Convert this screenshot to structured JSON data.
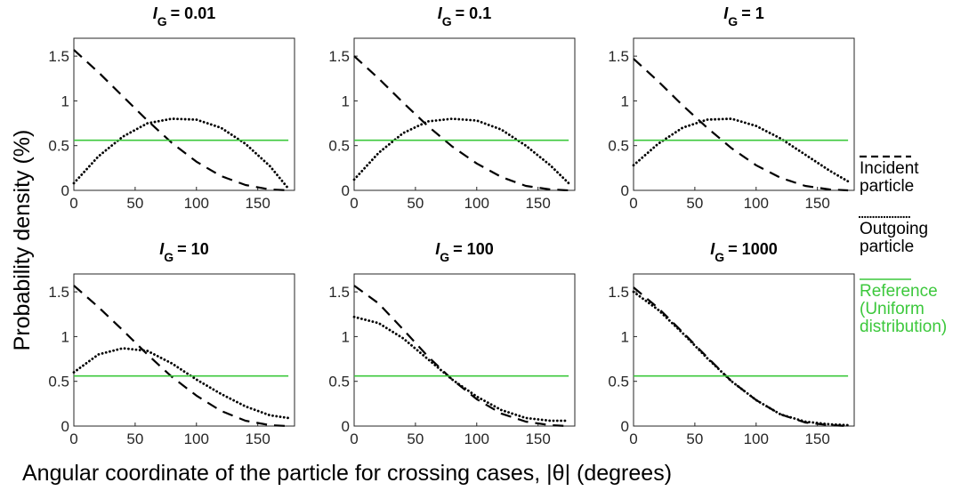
{
  "colors": {
    "incident": "#000000",
    "outgoing": "#000000",
    "reference": "#3cc83c",
    "axis": "#262626"
  },
  "ylabel": "Probability density (%)",
  "xlabel": "Angular coordinate of the particle for crossing cases, |θ| (degrees)",
  "legend": {
    "placement": "right",
    "items": [
      {
        "key": "incident",
        "lines": [
          "Incident",
          "particle"
        ]
      },
      {
        "key": "outgoing",
        "lines": [
          "Outgoing",
          "particle"
        ]
      },
      {
        "key": "reference",
        "lines": [
          "Reference",
          "(Uniform",
          "distribution)"
        ]
      }
    ]
  },
  "chart_data": [
    {
      "type": "line",
      "title_var": "I",
      "title_sub": "G",
      "title_value": "= 0.01",
      "xlim": [
        0,
        180
      ],
      "ylim": [
        0,
        1.7
      ],
      "xticks": [
        "0",
        "50",
        "100",
        "150"
      ],
      "yticks": [
        "0",
        "0.5",
        "1",
        "1.5"
      ],
      "x": [
        0,
        20,
        40,
        60,
        80,
        100,
        120,
        140,
        160,
        175
      ],
      "series": [
        {
          "key": "incident",
          "values": [
            1.57,
            1.32,
            1.05,
            0.78,
            0.53,
            0.32,
            0.16,
            0.06,
            0.01,
            0.0
          ]
        },
        {
          "key": "outgoing",
          "values": [
            0.08,
            0.38,
            0.6,
            0.75,
            0.8,
            0.79,
            0.7,
            0.52,
            0.27,
            0.02
          ]
        },
        {
          "key": "reference",
          "values": [
            0.56,
            0.56,
            0.56,
            0.56,
            0.56,
            0.56,
            0.56,
            0.56,
            0.56,
            0.56
          ]
        }
      ]
    },
    {
      "type": "line",
      "title_var": "I",
      "title_sub": "G",
      "title_value": "= 0.1",
      "xlim": [
        0,
        180
      ],
      "ylim": [
        0,
        1.7
      ],
      "xticks": [
        "0",
        "50",
        "100",
        "150"
      ],
      "yticks": [
        "0",
        "0.5",
        "1",
        "1.5"
      ],
      "x": [
        0,
        20,
        40,
        60,
        80,
        100,
        120,
        140,
        160,
        175
      ],
      "series": [
        {
          "key": "incident",
          "values": [
            1.5,
            1.25,
            0.98,
            0.72,
            0.49,
            0.3,
            0.15,
            0.05,
            0.01,
            0.0
          ]
        },
        {
          "key": "outgoing",
          "values": [
            0.12,
            0.42,
            0.64,
            0.77,
            0.8,
            0.78,
            0.68,
            0.5,
            0.28,
            0.08
          ]
        },
        {
          "key": "reference",
          "values": [
            0.56,
            0.56,
            0.56,
            0.56,
            0.56,
            0.56,
            0.56,
            0.56,
            0.56,
            0.56
          ]
        }
      ]
    },
    {
      "type": "line",
      "title_var": "I",
      "title_sub": "G",
      "title_value": "= 1",
      "xlim": [
        0,
        180
      ],
      "ylim": [
        0,
        1.7
      ],
      "xticks": [
        "0",
        "50",
        "100",
        "150"
      ],
      "yticks": [
        "0",
        "0.5",
        "1",
        "1.5"
      ],
      "x": [
        0,
        20,
        40,
        60,
        80,
        100,
        120,
        140,
        160,
        175
      ],
      "series": [
        {
          "key": "incident",
          "values": [
            1.47,
            1.22,
            0.95,
            0.7,
            0.47,
            0.28,
            0.14,
            0.05,
            0.01,
            0.0
          ]
        },
        {
          "key": "outgoing",
          "values": [
            0.28,
            0.52,
            0.7,
            0.79,
            0.8,
            0.72,
            0.58,
            0.4,
            0.22,
            0.1
          ]
        },
        {
          "key": "reference",
          "values": [
            0.56,
            0.56,
            0.56,
            0.56,
            0.56,
            0.56,
            0.56,
            0.56,
            0.56,
            0.56
          ]
        }
      ]
    },
    {
      "type": "line",
      "title_var": "I",
      "title_sub": "G",
      "title_value": "= 10",
      "xlim": [
        0,
        180
      ],
      "ylim": [
        0,
        1.7
      ],
      "xticks": [
        "0",
        "50",
        "100",
        "150"
      ],
      "yticks": [
        "0",
        "0.5",
        "1",
        "1.5"
      ],
      "x": [
        0,
        20,
        40,
        60,
        80,
        100,
        120,
        140,
        160,
        175
      ],
      "series": [
        {
          "key": "incident",
          "values": [
            1.57,
            1.33,
            1.07,
            0.8,
            0.55,
            0.34,
            0.17,
            0.06,
            0.01,
            0.0
          ]
        },
        {
          "key": "outgoing",
          "values": [
            0.6,
            0.8,
            0.87,
            0.84,
            0.7,
            0.52,
            0.36,
            0.22,
            0.12,
            0.09
          ]
        },
        {
          "key": "reference",
          "values": [
            0.56,
            0.56,
            0.56,
            0.56,
            0.56,
            0.56,
            0.56,
            0.56,
            0.56,
            0.56
          ]
        }
      ]
    },
    {
      "type": "line",
      "title_var": "I",
      "title_sub": "G",
      "title_value": "= 100",
      "xlim": [
        0,
        180
      ],
      "ylim": [
        0,
        1.7
      ],
      "xticks": [
        "0",
        "50",
        "100",
        "150"
      ],
      "yticks": [
        "0",
        "0.5",
        "1",
        "1.5"
      ],
      "x": [
        0,
        20,
        40,
        60,
        80,
        100,
        120,
        140,
        160,
        175
      ],
      "series": [
        {
          "key": "incident",
          "values": [
            1.57,
            1.37,
            1.08,
            0.78,
            0.52,
            0.3,
            0.14,
            0.05,
            0.01,
            0.0
          ]
        },
        {
          "key": "outgoing",
          "values": [
            1.22,
            1.15,
            0.98,
            0.75,
            0.52,
            0.33,
            0.18,
            0.09,
            0.06,
            0.06
          ]
        },
        {
          "key": "reference",
          "values": [
            0.56,
            0.56,
            0.56,
            0.56,
            0.56,
            0.56,
            0.56,
            0.56,
            0.56,
            0.56
          ]
        }
      ]
    },
    {
      "type": "line",
      "title_var": "I",
      "title_sub": "G",
      "title_value": "= 1000",
      "xlim": [
        0,
        180
      ],
      "ylim": [
        0,
        1.7
      ],
      "xticks": [
        "0",
        "50",
        "100",
        "150"
      ],
      "yticks": [
        "0",
        "0.5",
        "1",
        "1.5"
      ],
      "x": [
        0,
        20,
        40,
        60,
        80,
        100,
        120,
        140,
        160,
        175
      ],
      "series": [
        {
          "key": "incident",
          "values": [
            1.55,
            1.32,
            1.05,
            0.77,
            0.5,
            0.29,
            0.13,
            0.04,
            0.01,
            0.0
          ]
        },
        {
          "key": "outgoing",
          "values": [
            1.5,
            1.3,
            1.04,
            0.76,
            0.5,
            0.29,
            0.13,
            0.05,
            0.02,
            0.01
          ]
        },
        {
          "key": "reference",
          "values": [
            0.56,
            0.56,
            0.56,
            0.56,
            0.56,
            0.56,
            0.56,
            0.56,
            0.56,
            0.56
          ]
        }
      ]
    }
  ]
}
